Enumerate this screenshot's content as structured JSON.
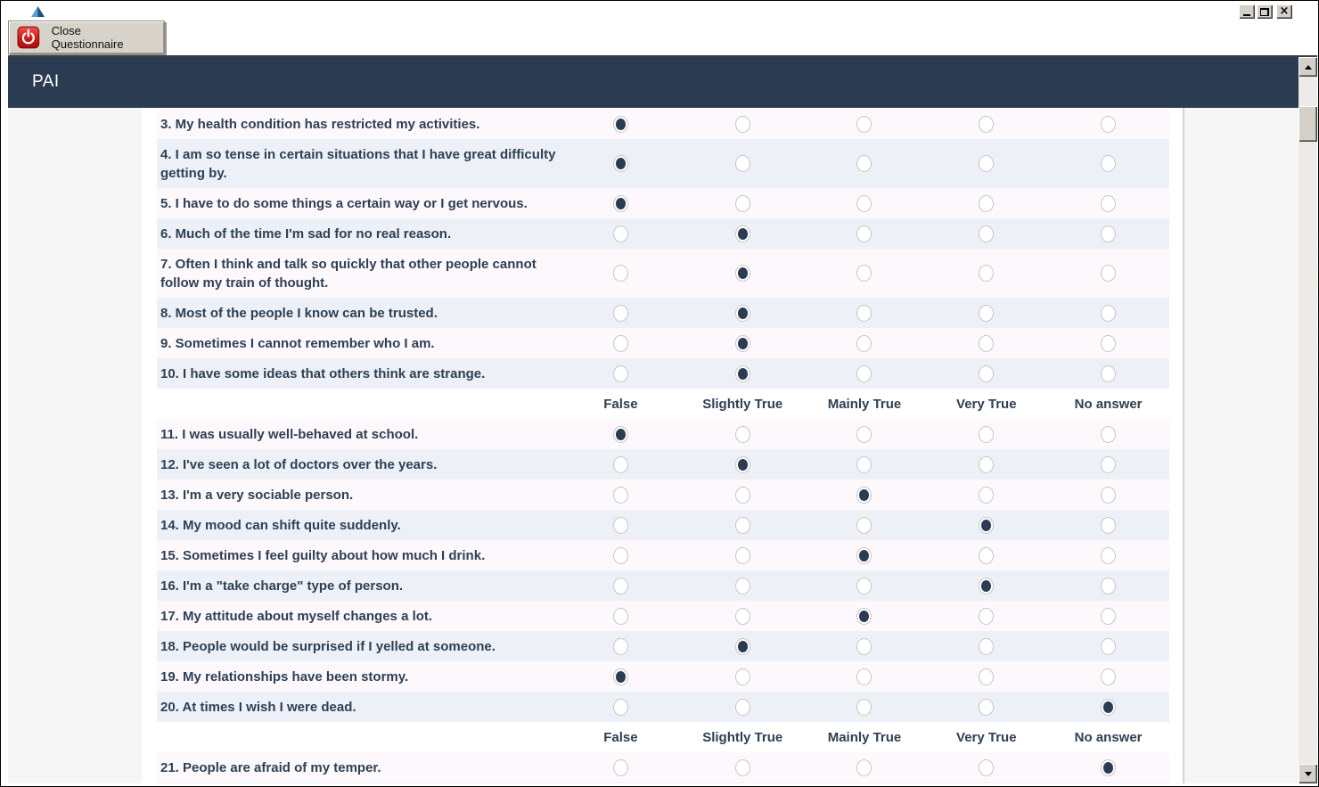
{
  "window": {
    "icons": {
      "app_logo": "triangle-logo",
      "minimize": "minimize-glyph",
      "restore": "restore-glyph",
      "close": "×",
      "power": "power-symbol",
      "scroll_up": "up-arrow",
      "scroll_down": "down-arrow"
    }
  },
  "toolbar": {
    "close_button_label": "Close Questionnaire"
  },
  "page": {
    "title": "PAI"
  },
  "colors": {
    "header_navy": "#2b3c52",
    "text_navy": "#2e4053",
    "stripe_pink": "#fdf8fc",
    "stripe_blue": "#edf1f7",
    "page_bg": "#f6f6f6",
    "power_red": "#c81414"
  },
  "options": [
    "False",
    "Slightly True",
    "Mainly True",
    "Very True",
    "No answer"
  ],
  "sections": [
    {
      "show_header": false,
      "questions": [
        {
          "num": 3,
          "text": "My health condition has restricted my activities.",
          "answer": "False"
        },
        {
          "num": 4,
          "text": "I am so tense in certain situations that I have great difficulty getting by.",
          "answer": "False"
        },
        {
          "num": 5,
          "text": "I have to do some things a certain way or I get nervous.",
          "answer": "False"
        },
        {
          "num": 6,
          "text": "Much of the time I'm sad for no real reason.",
          "answer": "Slightly True"
        },
        {
          "num": 7,
          "text": "Often I think and talk so quickly that other people cannot follow my train of thought.",
          "answer": "Slightly True"
        },
        {
          "num": 8,
          "text": "Most of the people I know can be trusted.",
          "answer": "Slightly True"
        },
        {
          "num": 9,
          "text": "Sometimes I cannot remember who I am.",
          "answer": "Slightly True"
        },
        {
          "num": 10,
          "text": "I have some ideas that others think are strange.",
          "answer": "Slightly True"
        }
      ]
    },
    {
      "show_header": true,
      "questions": [
        {
          "num": 11,
          "text": "I was usually well-behaved at school.",
          "answer": "False"
        },
        {
          "num": 12,
          "text": "I've seen a lot of doctors over the years.",
          "answer": "Slightly True"
        },
        {
          "num": 13,
          "text": "I'm a very sociable person.",
          "answer": "Mainly True"
        },
        {
          "num": 14,
          "text": "My mood can shift quite suddenly.",
          "answer": "Very True"
        },
        {
          "num": 15,
          "text": "Sometimes I feel guilty about how much I drink.",
          "answer": "Mainly True"
        },
        {
          "num": 16,
          "text": "I'm a \"take charge\" type of person.",
          "answer": "Very True"
        },
        {
          "num": 17,
          "text": "My attitude about myself changes a lot.",
          "answer": "Mainly True"
        },
        {
          "num": 18,
          "text": "People would be surprised if I yelled at someone.",
          "answer": "Slightly True"
        },
        {
          "num": 19,
          "text": "My relationships have been stormy.",
          "answer": "False"
        },
        {
          "num": 20,
          "text": "At times I wish I were dead.",
          "answer": "No answer"
        }
      ]
    },
    {
      "show_header": true,
      "questions": [
        {
          "num": 21,
          "text": "People are afraid of my temper.",
          "answer": "No answer"
        }
      ]
    }
  ]
}
